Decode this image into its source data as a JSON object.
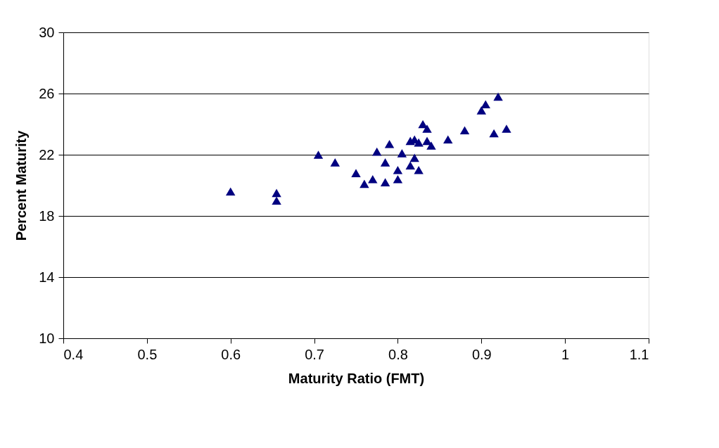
{
  "chart_data": {
    "type": "scatter",
    "xlabel": "Maturity Ratio (FMT)",
    "ylabel": "Percent Maturity",
    "xlim": [
      0.4,
      1.1
    ],
    "xticks": [
      0.4,
      0.5,
      0.6,
      0.7,
      0.8,
      0.9,
      1,
      1.1
    ],
    "ylim": [
      10,
      30
    ],
    "yticks": [
      10,
      14,
      18,
      22,
      26,
      30
    ],
    "grid": "y",
    "marker": "triangle",
    "series": [
      {
        "color": "#000080",
        "x": [
          0.6,
          0.655,
          0.655,
          0.705,
          0.725,
          0.75,
          0.76,
          0.77,
          0.775,
          0.785,
          0.785,
          0.79,
          0.8,
          0.8,
          0.805,
          0.815,
          0.815,
          0.82,
          0.82,
          0.825,
          0.825,
          0.83,
          0.835,
          0.835,
          0.84,
          0.86,
          0.88,
          0.9,
          0.905,
          0.915,
          0.92,
          0.93
        ],
        "values": [
          19.6,
          19.5,
          19.0,
          22.0,
          21.5,
          20.8,
          20.1,
          20.4,
          22.2,
          21.5,
          20.2,
          22.7,
          21.0,
          20.4,
          22.1,
          21.3,
          22.9,
          21.8,
          23.0,
          22.8,
          21.0,
          24.0,
          23.7,
          22.9,
          22.6,
          23.0,
          23.6,
          24.9,
          25.3,
          23.4,
          25.8,
          23.7
        ]
      }
    ]
  }
}
